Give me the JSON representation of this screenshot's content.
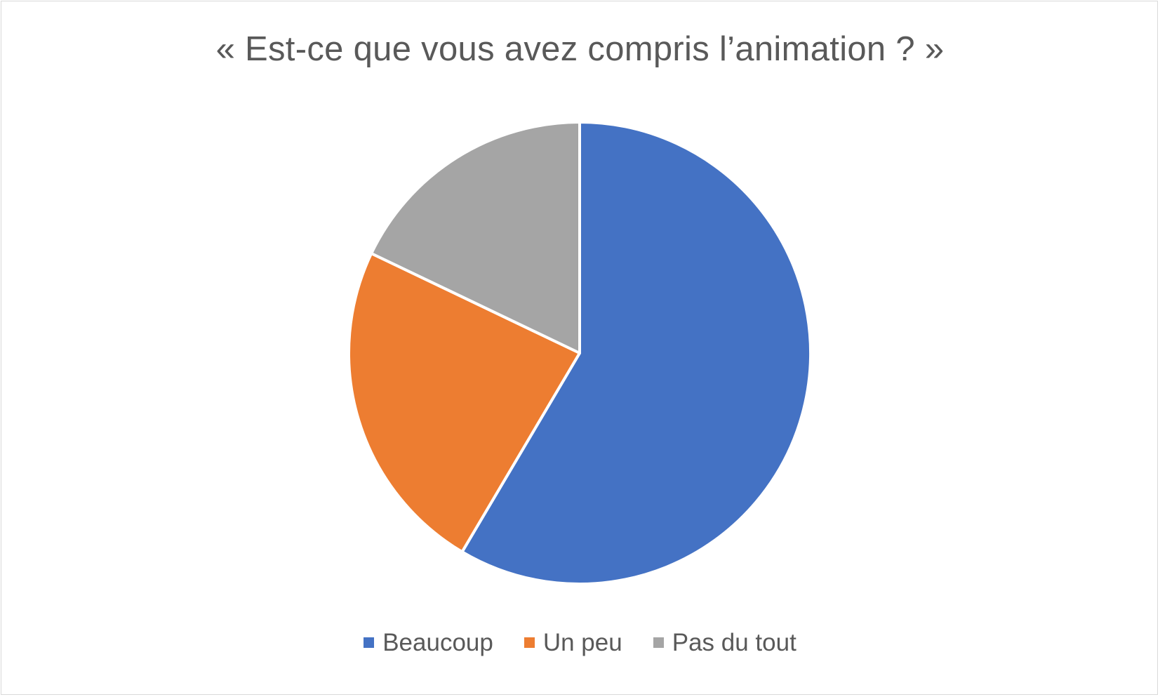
{
  "chart_data": {
    "type": "pie",
    "title": "« Est-ce que vous avez compris l’animation ? »",
    "categories": [
      "Beaucoup",
      "Un peu",
      "Pas du tout"
    ],
    "values": [
      58.5,
      23.6,
      17.9
    ],
    "colors": [
      "#4472C4",
      "#ED7D31",
      "#A5A5A5"
    ],
    "start_angle_deg": 0,
    "direction": "clockwise",
    "legend_position": "bottom",
    "data_labels": false
  }
}
